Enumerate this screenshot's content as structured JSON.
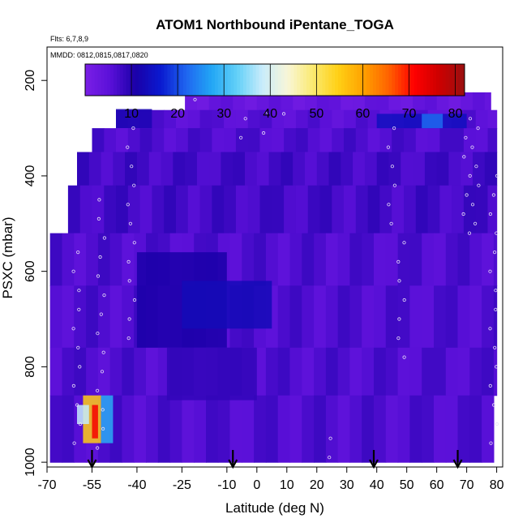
{
  "chart_data": {
    "type": "heatmap",
    "title": "ATOM1 Northbound iPentane_TOGA",
    "subtitle_lines": [
      "Flts: 6,7,8,9",
      "MMDD: 0812,0815,0817,0820"
    ],
    "xlabel": "Latitude (deg N)",
    "ylabel": "PSXC (mbar)",
    "xlim": [
      -70,
      82
    ],
    "ylim": [
      1010,
      130
    ],
    "x_ticks": [
      -70,
      -55,
      -40,
      -25,
      -10,
      0,
      10,
      20,
      30,
      40,
      50,
      60,
      70,
      80
    ],
    "x_tick_labels": [
      "-70",
      "-55",
      "-40",
      "-25",
      "-10",
      "0",
      "10",
      "20",
      "30",
      "40",
      "50",
      "60",
      "70",
      "80"
    ],
    "y_ticks": [
      200,
      400,
      600,
      800,
      1000
    ],
    "y_tick_labels": [
      "200",
      "400",
      "600",
      "800",
      "1000"
    ],
    "colorbar": {
      "range": [
        0,
        82
      ],
      "ticks": [
        10,
        20,
        30,
        40,
        50,
        60,
        70,
        80
      ],
      "tick_labels": [
        "10",
        "20",
        "30",
        "40",
        "50",
        "60",
        "70",
        "80"
      ],
      "colors": [
        "#7a1fe6",
        "#5a10d8",
        "#1a00a8",
        "#0a1ad0",
        "#1f66f0",
        "#22a6f5",
        "#62d0f8",
        "#c8ecfb",
        "#f8f6d8",
        "#fbea70",
        "#ffd015",
        "#ffa100",
        "#ff6200",
        "#ff0000",
        "#cc0000",
        "#9a1010"
      ]
    },
    "heatmap": {
      "description_levels": "cell values in pptv, estimated",
      "rows": [
        {
          "p": [
            225,
            262
          ],
          "lat": [
            -24,
            78
          ],
          "value": 3
        },
        {
          "p": [
            262,
            300
          ],
          "lat": [
            -47,
            80
          ],
          "value": 5
        },
        {
          "p": [
            300,
            350
          ],
          "lat": [
            -55,
            80
          ],
          "value": 6
        },
        {
          "p": [
            350,
            420
          ],
          "lat": [
            -60,
            80
          ],
          "value": 7
        },
        {
          "p": [
            420,
            520
          ],
          "lat": [
            -63,
            80
          ],
          "value": 7
        },
        {
          "p": [
            520,
            630
          ],
          "lat": [
            -69,
            80
          ],
          "value": 6
        },
        {
          "p": [
            630,
            760
          ],
          "lat": [
            -69,
            80
          ],
          "value": 6
        },
        {
          "p": [
            760,
            860
          ],
          "lat": [
            -69,
            80
          ],
          "value": 6
        },
        {
          "p": [
            860,
            1000
          ],
          "lat": [
            -69,
            79
          ],
          "value": 6
        }
      ],
      "enhancements": [
        {
          "lat": [
            -40,
            -10
          ],
          "p": [
            560,
            760
          ],
          "value": 11
        },
        {
          "lat": [
            -25,
            5
          ],
          "p": [
            620,
            720
          ],
          "value": 13
        },
        {
          "lat": [
            -30,
            0
          ],
          "p": [
            760,
            870
          ],
          "value": 9
        },
        {
          "lat": [
            -47,
            -35
          ],
          "p": [
            260,
            300
          ],
          "value": 12
        },
        {
          "lat": [
            40,
            70
          ],
          "p": [
            270,
            300
          ],
          "value": 14
        },
        {
          "lat": [
            55,
            62
          ],
          "p": [
            270,
            300
          ],
          "value": 22
        },
        {
          "lat": [
            -58,
            -52
          ],
          "p": [
            860,
            960
          ],
          "value": 55
        },
        {
          "lat": [
            -60,
            -56
          ],
          "p": [
            880,
            920
          ],
          "value": 38
        },
        {
          "lat": [
            -55,
            -53
          ],
          "p": [
            880,
            950
          ],
          "value": 72
        },
        {
          "lat": [
            -52,
            -48
          ],
          "p": [
            860,
            960
          ],
          "value": 28
        }
      ]
    },
    "flight_markers_lat": [
      -55,
      -8,
      39,
      67
    ]
  }
}
